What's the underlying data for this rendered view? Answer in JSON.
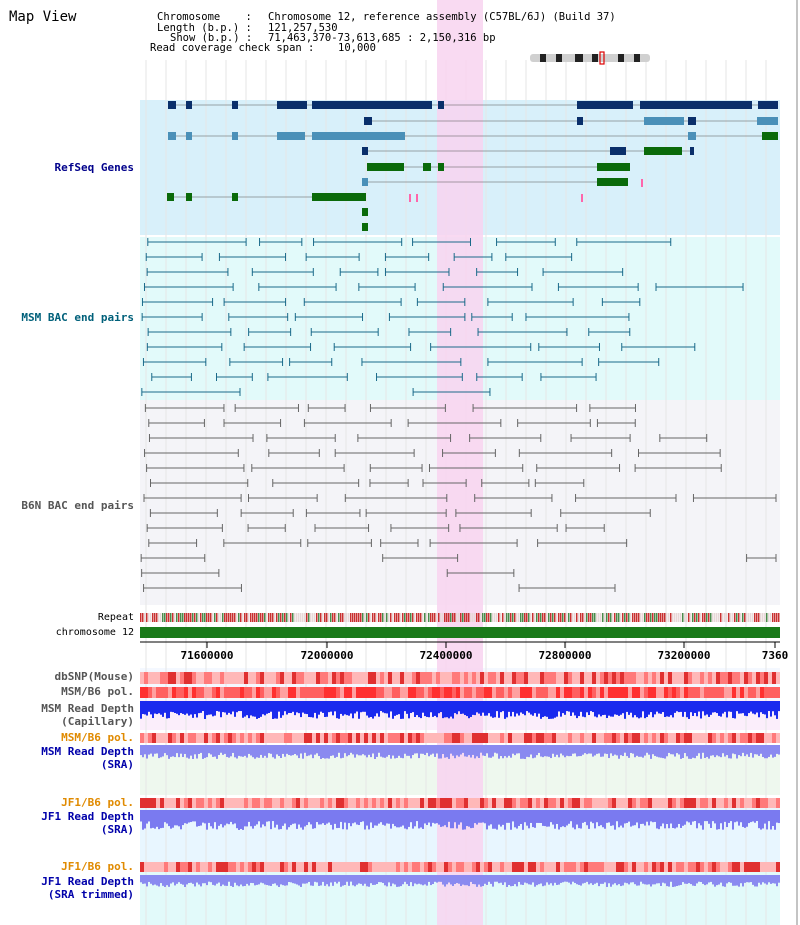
{
  "window": {
    "title": "Map View"
  },
  "header": {
    "chromosome_key": "Chromosome    :",
    "chromosome_val": "Chromosome 12, reference assembly (C57BL/6J) (Build 37)",
    "length_key": "Length (b.p.) :",
    "length_val": "121,257,530",
    "show_key": "Show (b.p.) :",
    "show_val": "71,463,370-73,613,685 : 2,150,316 bp",
    "span_key": "Read coverage check span :",
    "span_val": "10,000"
  },
  "tracks": {
    "refseq": "RefSeq Genes",
    "msm_bac": "MSM BAC end pairs",
    "b6n_bac": "B6N BAC end pairs",
    "repeat": "Repeat",
    "chrom": "chromosome 12",
    "dbsnp": "dbSNP(Mouse)",
    "msm_b6_pol": "MSM/B6 pol.",
    "msm_depth_cap_1": "MSM Read Depth",
    "msm_depth_cap_2": "(Capillary)",
    "msm_b6_pol_2": "MSM/B6 pol.",
    "msm_depth_sra_1": "MSM Read Depth",
    "msm_depth_sra_2": "(SRA)",
    "jf1_pol_1": "JF1/B6 pol.",
    "jf1_depth_sra_1": "JF1 Read Depth",
    "jf1_depth_sra_2": "(SRA)",
    "jf1_pol_2": "JF1/B6 pol.",
    "jf1_depth_trim_1": "JF1 Read Depth",
    "jf1_depth_trim_2": "(SRA trimmed)"
  },
  "axis": {
    "ticks": [
      "71600000",
      "72000000",
      "72400000",
      "72800000",
      "73200000",
      "7360"
    ]
  },
  "colors": {
    "refseq_label": "#00008b",
    "msm_label": "#00607a",
    "b6n_label": "#555555",
    "orange_label": "#e08a00",
    "blue_label": "#0000aa",
    "highlight": "#f8d4f0",
    "gene_dark": "#0a2f6a",
    "gene_mid": "#4a90b8",
    "gene_green": "#0a6a0a"
  }
}
